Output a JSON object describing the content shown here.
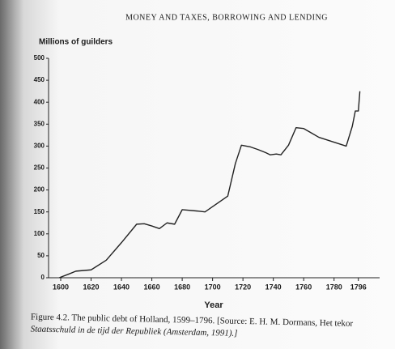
{
  "header": "MONEY AND TAXES, BORROWING AND LENDING",
  "chart_data": {
    "type": "line",
    "y_label": "Millions of guilders",
    "x_label": "Year",
    "x": [
      1599,
      1605,
      1610,
      1620,
      1630,
      1640,
      1650,
      1655,
      1660,
      1665,
      1670,
      1675,
      1680,
      1690,
      1695,
      1700,
      1710,
      1715,
      1719,
      1725,
      1730,
      1735,
      1738,
      1742,
      1745,
      1750,
      1755,
      1760,
      1765,
      1770,
      1788,
      1792,
      1794,
      1796,
      1797
    ],
    "series": [
      {
        "name": "Public debt",
        "color": "#222222",
        "values": [
          0,
          8,
          15,
          18,
          40,
          80,
          122,
          123,
          118,
          112,
          125,
          122,
          155,
          152,
          150,
          162,
          186,
          260,
          302,
          298,
          292,
          285,
          280,
          282,
          280,
          302,
          342,
          340,
          330,
          320,
          300,
          345,
          380,
          380,
          425
        ]
      }
    ],
    "xlim": [
      1592,
      1810
    ],
    "xticks": [
      1600,
      1620,
      1640,
      1660,
      1680,
      1700,
      1720,
      1740,
      1760,
      1780,
      1796
    ],
    "ylim": [
      0,
      500
    ],
    "yticks": [
      0,
      50,
      100,
      150,
      200,
      250,
      300,
      350,
      400,
      450,
      500
    ]
  },
  "caption": {
    "line1": "Figure 4.2. The public debt of Holland, 1599–1796. [Source: E. H. M. Dormans, Het tekor",
    "line2": "Staatsschuld in de tijd der Republiek (Amsterdam, 1991).]"
  }
}
